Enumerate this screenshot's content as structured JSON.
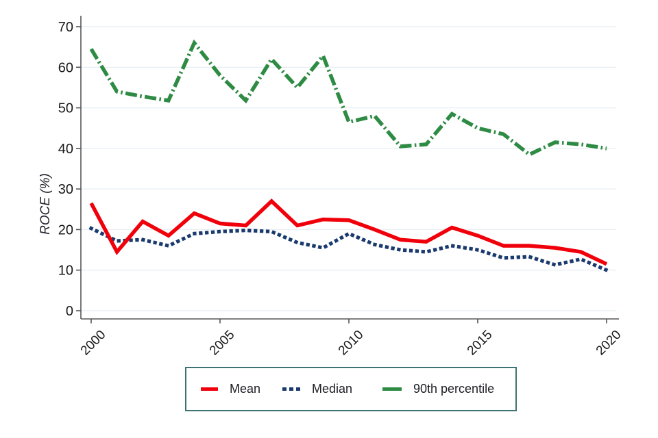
{
  "chart_data": {
    "type": "line",
    "title": "",
    "xlabel": "",
    "ylabel": "ROCE (%)",
    "x": [
      2000,
      2001,
      2002,
      2003,
      2004,
      2005,
      2006,
      2007,
      2008,
      2009,
      2010,
      2011,
      2012,
      2013,
      2014,
      2015,
      2016,
      2017,
      2018,
      2019,
      2020
    ],
    "series": [
      {
        "name": "Mean",
        "color": "#f0000a",
        "style": "solid",
        "values": [
          26.5,
          14.5,
          22,
          18.5,
          24,
          21.5,
          21,
          27,
          21,
          22.5,
          22.3,
          20,
          17.5,
          17,
          20.5,
          18.5,
          16,
          16,
          15.5,
          14.5,
          11.5
        ]
      },
      {
        "name": "Median",
        "color": "#1a3a6e",
        "style": "dotted",
        "values": [
          20.3,
          17.2,
          17.5,
          16,
          19,
          19.5,
          19.8,
          19.5,
          16.8,
          15.5,
          19,
          16.3,
          15,
          14.5,
          16,
          15,
          13,
          13.3,
          11.3,
          12.7,
          10
        ]
      },
      {
        "name": "90th percentile",
        "color": "#2e8b44",
        "style": "dash-dot",
        "values": [
          64.5,
          54,
          52.8,
          51.8,
          66,
          58,
          51.8,
          62,
          55,
          62.8,
          46.5,
          48,
          40.5,
          41,
          48.5,
          45,
          43.5,
          38.5,
          41.5,
          41,
          40
        ]
      }
    ],
    "ylim": [
      0,
      70
    ],
    "yticks": [
      0,
      10,
      20,
      30,
      40,
      50,
      60,
      70
    ],
    "xticks": [
      2000,
      2005,
      2010,
      2015,
      2020
    ],
    "grid": "horizontal",
    "legend_position": "bottom",
    "colors": {
      "gridline": "#e9eff4",
      "axis": "#565656",
      "tick_label": "#1a1a1a",
      "ylabel_text": "#23232d",
      "legend_border": "#3d7473",
      "background": "#ffffff"
    }
  }
}
